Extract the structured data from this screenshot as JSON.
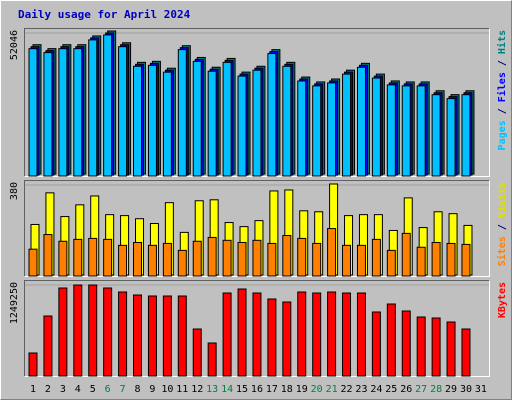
{
  "chart_data": [
    {
      "type": "bar",
      "title": "Daily usage for April 2024",
      "ylim": [
        0,
        52046
      ],
      "yticks": [
        52046
      ],
      "legend_separator": " / ",
      "series": [
        {
          "name": "Hits",
          "color": "#008080",
          "values": [
            47060,
            45630,
            47060,
            47060,
            50260,
            52046,
            47770,
            40640,
            41000,
            38500,
            46700,
            42420,
            38860,
            42070,
            37080,
            39210,
            45270,
            40640,
            35290,
            33510,
            34580,
            37790,
            40280,
            36360,
            33870,
            33510,
            33510,
            30300,
            28880,
            30300,
            null
          ]
        },
        {
          "name": "Files",
          "color": "#0000ff",
          "values": [
            46700,
            45270,
            46700,
            46700,
            49900,
            51690,
            47420,
            40280,
            40640,
            38140,
            46340,
            42070,
            38500,
            41710,
            36720,
            38860,
            44920,
            40280,
            34940,
            33160,
            34220,
            37430,
            39920,
            36000,
            33510,
            33160,
            33160,
            29940,
            28520,
            29940,
            null
          ]
        },
        {
          "name": "Pages",
          "color": "#00c0ff",
          "values": [
            46340,
            44920,
            46340,
            46340,
            49540,
            51330,
            47060,
            39920,
            40280,
            37790,
            45990,
            41710,
            38140,
            41350,
            36360,
            38500,
            44560,
            39920,
            34580,
            32800,
            33870,
            37080,
            39560,
            35650,
            33160,
            32800,
            32800,
            29590,
            28160,
            29590,
            null
          ]
        }
      ]
    },
    {
      "type": "bar",
      "ylim": [
        0,
        380
      ],
      "yticks": [
        380
      ],
      "legend_separator": " / ",
      "series": [
        {
          "name": "Visits",
          "color": "#ffff00",
          "values": [
            211,
            343,
            244,
            293,
            330,
            252,
            248,
            235,
            215,
            302,
            178,
            310,
            314,
            219,
            202,
            227,
            351,
            355,
            268,
            264,
            380,
            248,
            252,
            252,
            186,
            322,
            198,
            264,
            256,
            207,
            null
          ]
        },
        {
          "name": "Sites",
          "color": "#ff8000",
          "values": [
            112,
            173,
            145,
            153,
            157,
            153,
            128,
            140,
            128,
            136,
            107,
            145,
            161,
            149,
            140,
            149,
            136,
            169,
            157,
            136,
            198,
            128,
            128,
            153,
            107,
            178,
            120,
            140,
            136,
            132,
            null
          ]
        }
      ]
    },
    {
      "type": "bar",
      "ylim": [
        0,
        1249250
      ],
      "yticks": [
        1249250
      ],
      "categories": [
        "1",
        "2",
        "3",
        "4",
        "5",
        "6",
        "7",
        "8",
        "9",
        "10",
        "11",
        "12",
        "13",
        "14",
        "15",
        "16",
        "17",
        "18",
        "19",
        "20",
        "21",
        "22",
        "23",
        "24",
        "25",
        "26",
        "27",
        "28",
        "29",
        "30",
        "31"
      ],
      "weekend_indices": [
        5,
        6,
        12,
        13,
        19,
        20,
        26,
        27
      ],
      "weekend_color": "#008040",
      "weekday_color": "#000000",
      "series": [
        {
          "name": "KBytes",
          "color": "#ff0000",
          "values": [
            315700,
            823700,
            1208100,
            1249250,
            1249250,
            1208100,
            1153200,
            1112000,
            1098200,
            1098200,
            1098200,
            645200,
            453000,
            1139400,
            1194300,
            1139400,
            1057100,
            1015900,
            1153200,
            1139400,
            1153200,
            1139400,
            1139400,
            878600,
            988400,
            892300,
            810000,
            796200,
            741300,
            645200,
            null
          ]
        }
      ]
    }
  ]
}
